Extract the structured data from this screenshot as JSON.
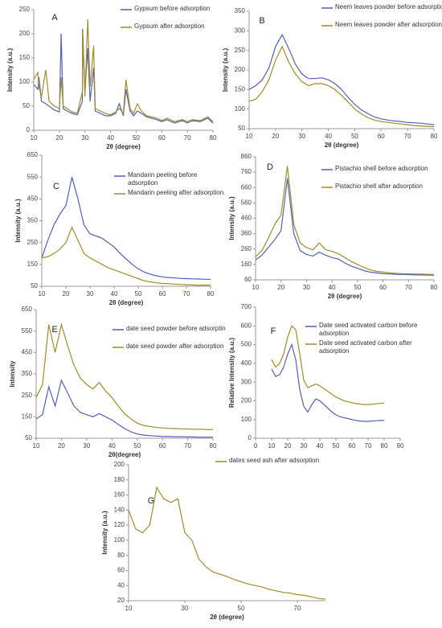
{
  "chart_data": [
    {
      "type": "line",
      "label": "A",
      "x_label": "2θ (degree)",
      "y_label": "Intensity (a.u.)",
      "x": [
        10,
        11.6,
        12,
        13,
        14.7,
        16,
        18,
        20,
        20.7,
        21.5,
        23,
        25,
        27,
        29,
        29.1,
        30,
        31.1,
        32,
        33.4,
        34,
        36,
        38,
        40,
        42,
        43.4,
        45,
        46,
        47.6,
        49,
        50.5,
        52,
        54,
        56,
        58,
        60,
        62,
        65,
        68,
        70,
        72,
        75,
        78,
        80
      ],
      "xlim": [
        10,
        80
      ],
      "xticks": [
        10,
        20,
        30,
        40,
        50,
        60,
        70,
        80
      ],
      "ylim": [
        0,
        250
      ],
      "yticks": [
        0,
        50,
        100,
        150,
        200,
        250
      ],
      "series": [
        {
          "name": "Gypsum before adsorption",
          "color": "#5361b5",
          "values": [
            95,
            85,
            110,
            60,
            55,
            50,
            42,
            38,
            200,
            45,
            40,
            35,
            32,
            60,
            210,
            80,
            170,
            60,
            130,
            40,
            35,
            30,
            30,
            35,
            55,
            30,
            85,
            40,
            30,
            40,
            35,
            28,
            25,
            22,
            18,
            22,
            15,
            20,
            15,
            20,
            18,
            25,
            15
          ]
        },
        {
          "name": "Gypsum after adsorption",
          "color": "#a38b2b",
          "values": [
            105,
            120,
            90,
            70,
            125,
            60,
            50,
            45,
            110,
            50,
            45,
            38,
            35,
            80,
            205,
            70,
            230,
            90,
            175,
            45,
            40,
            35,
            32,
            38,
            45,
            35,
            105,
            45,
            35,
            55,
            40,
            30,
            28,
            25,
            20,
            25,
            18,
            22,
            18,
            22,
            20,
            28,
            18
          ]
        }
      ]
    },
    {
      "type": "line",
      "label": "B",
      "x_label": "2θ (degree)",
      "y_label": "Intensity (a.u.)",
      "x": [
        10,
        12.5,
        15,
        17.5,
        20,
        22.5,
        25,
        27.5,
        30,
        32.5,
        35,
        37.5,
        40,
        42.5,
        45,
        47.5,
        50,
        52.5,
        55,
        57.5,
        60,
        62.5,
        65,
        67.5,
        70,
        72.5,
        75,
        77.5,
        80
      ],
      "xlim": [
        10,
        80
      ],
      "xticks": [
        10,
        20,
        30,
        40,
        50,
        60,
        70,
        80
      ],
      "ylim": [
        50,
        350
      ],
      "yticks": [
        50,
        100,
        150,
        200,
        250,
        300,
        350
      ],
      "series": [
        {
          "name": "Neem leaves powder before adsorption",
          "color": "#5361b5",
          "values": [
            150,
            160,
            175,
            205,
            260,
            290,
            255,
            215,
            190,
            178,
            178,
            180,
            175,
            165,
            150,
            130,
            112,
            98,
            88,
            80,
            75,
            72,
            70,
            68,
            66,
            65,
            64,
            62,
            60
          ]
        },
        {
          "name": "Neem leaves powder after adsorption",
          "color": "#a38b2b",
          "values": [
            120,
            125,
            145,
            175,
            225,
            260,
            220,
            190,
            170,
            160,
            165,
            165,
            160,
            150,
            135,
            118,
            100,
            88,
            78,
            72,
            68,
            66,
            64,
            62,
            60,
            58,
            57,
            56,
            55
          ]
        }
      ]
    },
    {
      "type": "line",
      "label": "C",
      "x_label": "2θ (degree)",
      "y_label": "Intensity (a.u.)",
      "x": [
        10,
        12.5,
        15,
        17.5,
        20,
        22.5,
        25,
        27.5,
        30,
        32.5,
        35,
        37.5,
        40,
        42.5,
        45,
        47.5,
        50,
        52.5,
        55,
        57.5,
        60,
        62.5,
        65,
        67.5,
        70,
        72.5,
        75,
        77.5,
        80
      ],
      "xlim": [
        10,
        80
      ],
      "xticks": [
        10,
        20,
        30,
        40,
        50,
        60,
        70,
        80
      ],
      "ylim": [
        50,
        650
      ],
      "yticks": [
        50,
        150,
        250,
        350,
        450,
        550,
        650
      ],
      "series": [
        {
          "name": "Mandarin peeling before adsorption",
          "color": "#5361b5",
          "values": [
            180,
            260,
            330,
            380,
            420,
            550,
            450,
            330,
            290,
            280,
            270,
            250,
            230,
            200,
            175,
            150,
            130,
            115,
            105,
            98,
            93,
            90,
            88,
            86,
            85,
            84,
            83,
            82,
            82
          ]
        },
        {
          "name": "Mandarin peeling after adsorption",
          "color": "#a38b2b",
          "values": [
            180,
            185,
            200,
            220,
            250,
            320,
            260,
            200,
            180,
            165,
            150,
            135,
            125,
            115,
            105,
            95,
            85,
            75,
            70,
            66,
            63,
            62,
            60,
            58,
            57,
            56,
            55,
            55,
            55
          ]
        }
      ]
    },
    {
      "type": "line",
      "label": "D",
      "x_label": "2θ (degree)",
      "y_label": "Intensity (a.u.)",
      "x": [
        10,
        12.5,
        15,
        17.5,
        20,
        22.5,
        25,
        27.5,
        30,
        32.5,
        35,
        37.5,
        40,
        42.5,
        45,
        47.5,
        50,
        52.5,
        55,
        57.5,
        60,
        62.5,
        65,
        67.5,
        70,
        72.5,
        75,
        77.5,
        80
      ],
      "xlim": [
        10,
        80
      ],
      "xticks": [
        10,
        20,
        30,
        40,
        50,
        60,
        70,
        80
      ],
      "ylim": [
        60,
        860
      ],
      "yticks": [
        60,
        160,
        260,
        360,
        460,
        560,
        660,
        760,
        860
      ],
      "series": [
        {
          "name": "Pistachio shell before adsorption",
          "color": "#5361b5",
          "values": [
            190,
            220,
            270,
            320,
            380,
            720,
            360,
            250,
            225,
            215,
            240,
            220,
            205,
            195,
            170,
            150,
            135,
            120,
            110,
            105,
            100,
            98,
            96,
            95,
            94,
            92,
            92,
            91,
            90
          ]
        },
        {
          "name": "Pistachio shell after adsorption",
          "color": "#a38b2b",
          "values": [
            210,
            250,
            330,
            420,
            480,
            800,
            420,
            300,
            270,
            255,
            300,
            255,
            245,
            230,
            205,
            180,
            160,
            140,
            125,
            115,
            110,
            105,
            102,
            100,
            99,
            98,
            97,
            96,
            95
          ]
        }
      ]
    },
    {
      "type": "line",
      "label": "E",
      "x_label": "2θ(degree)",
      "y_label": "Intensity",
      "x": [
        10,
        12.5,
        15,
        17.5,
        20,
        22.5,
        25,
        27.5,
        30,
        32.5,
        35,
        37.5,
        40,
        42.5,
        45,
        47.5,
        50,
        52.5,
        55,
        57.5,
        60,
        62.5,
        65,
        67.5,
        70,
        72.5,
        75,
        77.5,
        80
      ],
      "xlim": [
        10,
        80
      ],
      "xticks": [
        10,
        20,
        30,
        40,
        50,
        60,
        70,
        80
      ],
      "ylim": [
        50,
        650
      ],
      "yticks": [
        50,
        150,
        250,
        350,
        450,
        550,
        650
      ],
      "series": [
        {
          "name": "date seed powder before adsorptin",
          "color": "#5361b5",
          "values": [
            140,
            160,
            290,
            200,
            320,
            260,
            200,
            170,
            160,
            150,
            165,
            150,
            135,
            115,
            95,
            80,
            70,
            65,
            62,
            60,
            58,
            58,
            57,
            57,
            56,
            56,
            55,
            55,
            55
          ]
        },
        {
          "name": "date seed powder after adsorption",
          "color": "#a38b2b",
          "values": [
            240,
            300,
            580,
            450,
            580,
            480,
            390,
            330,
            300,
            280,
            310,
            270,
            240,
            200,
            165,
            140,
            120,
            110,
            105,
            100,
            98,
            96,
            95,
            94,
            93,
            92,
            92,
            91,
            90
          ]
        }
      ]
    },
    {
      "type": "line",
      "label": "F",
      "y_label": "Relative Intensity (a.u.)",
      "x": [
        10,
        12.5,
        15,
        17.5,
        20,
        22.5,
        25,
        27.5,
        30,
        32.5,
        35,
        37.5,
        40,
        42.5,
        45,
        47.5,
        50,
        52.5,
        55,
        57.5,
        60,
        62.5,
        65,
        67.5,
        70,
        72.5,
        75,
        77.5,
        80
      ],
      "xlim": [
        0,
        90
      ],
      "xticks": [
        0,
        10,
        20,
        30,
        40,
        50,
        60,
        70,
        80,
        90
      ],
      "ylim": [
        0,
        700
      ],
      "yticks": [
        0,
        100,
        200,
        300,
        400,
        500,
        600,
        700
      ],
      "series": [
        {
          "name": "Date seed activated carbon before adsorption",
          "color": "#5361b5",
          "values": [
            370,
            330,
            340,
            380,
            450,
            500,
            420,
            260,
            170,
            140,
            180,
            210,
            200,
            180,
            160,
            140,
            125,
            115,
            110,
            105,
            100,
            95,
            92,
            90,
            90,
            92,
            93,
            95,
            95
          ]
        },
        {
          "name": "Date seed activated carbon after adsorption",
          "color": "#a38b2b",
          "values": [
            420,
            380,
            400,
            450,
            540,
            600,
            580,
            450,
            310,
            270,
            280,
            290,
            280,
            265,
            250,
            235,
            220,
            210,
            200,
            195,
            190,
            185,
            182,
            180,
            180,
            182,
            184,
            186,
            188
          ]
        }
      ]
    },
    {
      "type": "line",
      "label": "G",
      "x_label": "2θ (degree)",
      "y_label": "Intensity (a.u.)",
      "x": [
        10,
        12.5,
        15,
        17.5,
        20,
        22.5,
        25,
        27.5,
        30,
        32.5,
        35,
        37.5,
        40,
        42.5,
        45,
        47.5,
        50,
        52.5,
        55,
        57.5,
        60,
        62.5,
        65,
        67.5,
        70,
        72.5,
        75,
        77.5,
        80
      ],
      "xlim": [
        10,
        80
      ],
      "xticks": [
        10,
        30,
        50,
        70
      ],
      "ylim": [
        20,
        200
      ],
      "yticks": [
        20,
        40,
        60,
        80,
        100,
        120,
        140,
        160,
        180,
        200
      ],
      "series": [
        {
          "name": "dates seed ash after adsorption",
          "color": "#a38b2b",
          "values": [
            140,
            115,
            110,
            120,
            170,
            155,
            150,
            155,
            110,
            100,
            75,
            65,
            58,
            55,
            52,
            48,
            45,
            42,
            40,
            38,
            35,
            33,
            31,
            30,
            28,
            27,
            25,
            23,
            22
          ]
        }
      ]
    }
  ]
}
